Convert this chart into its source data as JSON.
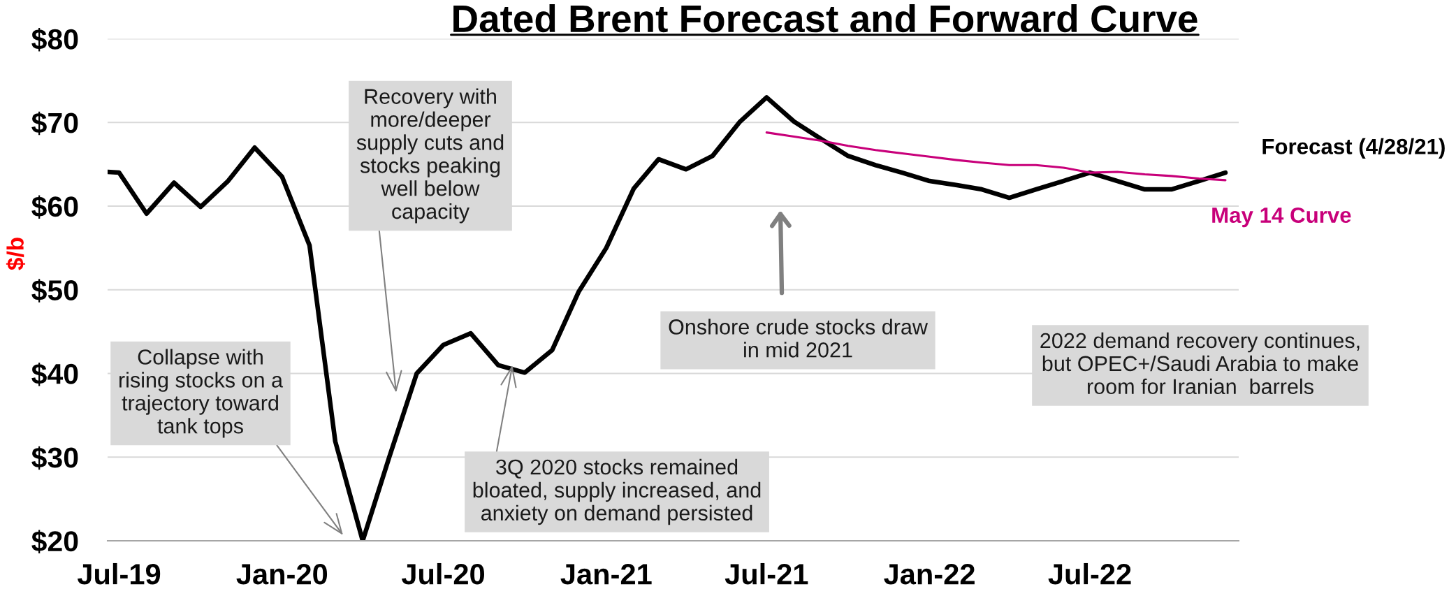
{
  "chart_data": {
    "type": "line",
    "title": "Dated Brent Forecast and Forward Curve",
    "ylabel": "$/b",
    "series": [
      {
        "name": "Forecast (4/28/21)",
        "color": "#000000",
        "x": [
          "2019-06-18",
          "2019-07",
          "2019-08",
          "2019-09",
          "2019-10",
          "2019-11",
          "2019-12",
          "2020-01",
          "2020-02",
          "2020-03",
          "2020-04",
          "2020-05",
          "2020-06",
          "2020-07",
          "2020-08",
          "2020-09",
          "2020-10",
          "2020-11",
          "2020-12",
          "2021-01",
          "2021-02",
          "2021-03",
          "2021-04",
          "2021-05",
          "2021-06",
          "2021-07",
          "2021-08",
          "2021-09",
          "2021-10",
          "2021-11",
          "2021-12",
          "2022-01",
          "2022-02",
          "2022-03",
          "2022-04",
          "2022-05",
          "2022-06",
          "2022-07",
          "2022-08",
          "2022-09",
          "2022-10",
          "2022-11",
          "2022-12"
        ],
        "values": [
          64.1,
          64.0,
          59.1,
          62.8,
          59.9,
          63.0,
          67.0,
          63.5,
          55.3,
          31.9,
          20.0,
          30.0,
          40.0,
          43.4,
          44.8,
          41.0,
          40.1,
          42.8,
          49.8,
          55.0,
          62.1,
          65.6,
          64.4,
          66.0,
          70.1,
          73.0,
          70.1,
          68.0,
          66.0,
          64.9,
          64.0,
          63.0,
          62.5,
          62.0,
          61.0,
          62.0,
          63.0,
          64.0,
          63.0,
          62.0,
          62.0,
          63.0,
          64.0
        ]
      },
      {
        "name": "May 14 Curve",
        "color": "#c8007a",
        "x": [
          "2021-07",
          "2021-08",
          "2021-09",
          "2021-10",
          "2021-11",
          "2021-12",
          "2022-01",
          "2022-02",
          "2022-03",
          "2022-04",
          "2022-05",
          "2022-06",
          "2022-07",
          "2022-08",
          "2022-09",
          "2022-10",
          "2022-11",
          "2022-12"
        ],
        "values": [
          68.8,
          68.3,
          67.8,
          67.2,
          66.7,
          66.3,
          65.9,
          65.5,
          65.2,
          64.9,
          64.9,
          64.6,
          64.0,
          64.1,
          63.8,
          63.6,
          63.3,
          63.1
        ]
      }
    ],
    "xlim": [
      "2019-06-18",
      "2022-12-16"
    ],
    "xticks": [
      {
        "value": "2019-07",
        "label": "Jul-19"
      },
      {
        "value": "2020-01",
        "label": "Jan-20"
      },
      {
        "value": "2020-07",
        "label": "Jul-20"
      },
      {
        "value": "2021-01",
        "label": "Jan-21"
      },
      {
        "value": "2021-07",
        "label": "Jul-21"
      },
      {
        "value": "2022-01",
        "label": "Jan-22"
      },
      {
        "value": "2022-07",
        "label": "Jul-22"
      }
    ],
    "ylim": [
      20,
      80
    ],
    "yticks": [
      {
        "value": 20,
        "label": "$20"
      },
      {
        "value": 30,
        "label": "$30"
      },
      {
        "value": 40,
        "label": "$40"
      },
      {
        "value": 50,
        "label": "$50"
      },
      {
        "value": 60,
        "label": "$60"
      },
      {
        "value": 70,
        "label": "$70"
      },
      {
        "value": 80,
        "label": "$80"
      }
    ],
    "grid": "y",
    "legend": false,
    "marker": "none",
    "line_style": "solid",
    "annotations": [
      "Collapse with\nrising stocks on a\ntrajectory toward\ntank tops",
      "Recovery with\nmore/deeper\nsupply cuts and\nstocks peaking\nwell below\ncapacity",
      {
        "text": "3Q 2020 stocks remained\nbloated, supply increased, and\nanxiety on demand persisted",
        "x": "2020-09-17",
        "y": 41.0
      },
      "Onshore crude stocks draw\nin mid 2021",
      "2022 demand recovery continues,\nbut OPEC+/Saudi Arabia to make\nroom for Iranian  barrels"
    ]
  }
}
